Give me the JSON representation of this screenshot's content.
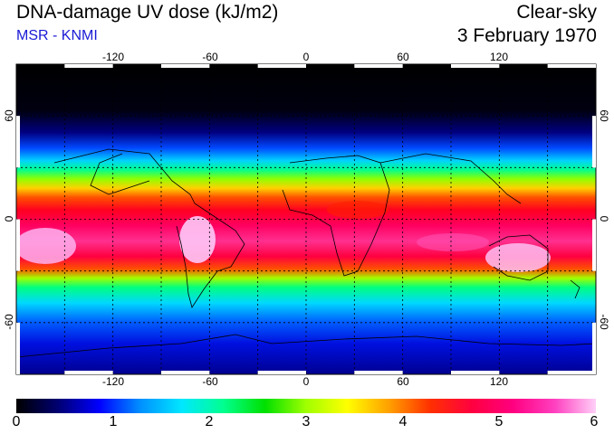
{
  "header": {
    "title": "DNA-damage UV dose (kJ/m2)",
    "subtitle": "MSR - KNMI",
    "sky_condition": "Clear-sky",
    "date": "3 February 1970"
  },
  "map": {
    "lon_ticks": [
      "-120",
      "-60",
      "0",
      "60",
      "120"
    ],
    "lat_ticks_left": [
      "60",
      "0",
      "-60"
    ],
    "lat_ticks_right": [
      "60",
      "0",
      "-60"
    ],
    "grid_lons": [
      -150,
      -120,
      -90,
      -60,
      -30,
      0,
      30,
      60,
      90,
      120,
      150
    ],
    "grid_lats": [
      60,
      30,
      0,
      -30,
      -60
    ],
    "extent": {
      "lon": [
        -180,
        180
      ],
      "lat": [
        -90,
        90
      ]
    }
  },
  "colorbar": {
    "labels": [
      "0",
      "1",
      "2",
      "3",
      "4",
      "5",
      "6"
    ],
    "range": [
      0,
      6
    ],
    "colors": [
      "#000000",
      "#000070",
      "#0000ff",
      "#0090ff",
      "#00e8ff",
      "#00ff90",
      "#00e000",
      "#a0ff00",
      "#ffff00",
      "#ffa000",
      "#ff3000",
      "#ff0040",
      "#ff0080",
      "#ff40c0",
      "#ffd0f8"
    ]
  },
  "colors": {
    "subtitle": "#1a1ad6",
    "grid": "#000000"
  }
}
